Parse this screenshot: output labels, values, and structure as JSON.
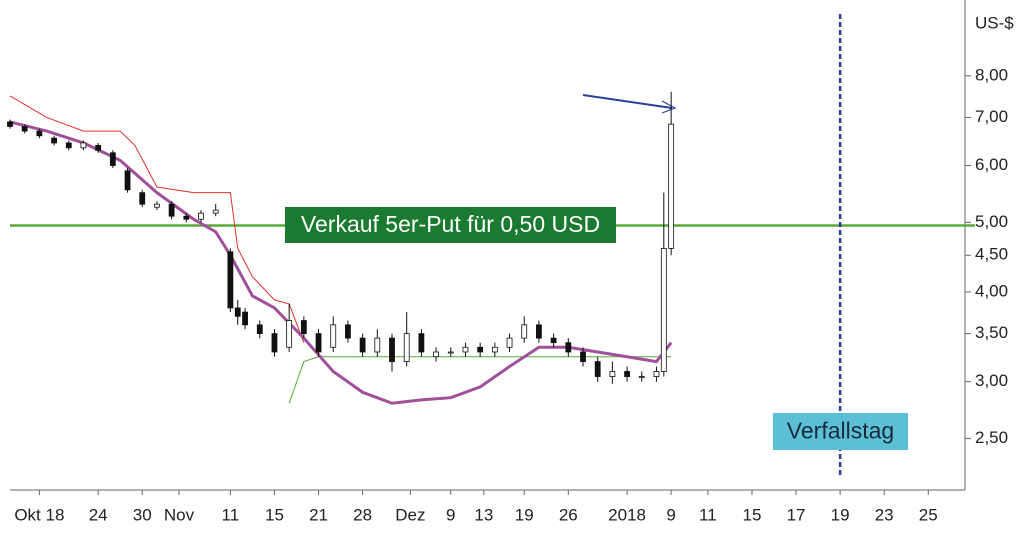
{
  "chart_data": {
    "type": "candlestick",
    "y_label": "US-$",
    "yscale": "log",
    "ylim": [
      2.12,
      10.2
    ],
    "yticks": [
      {
        "value": 2.5,
        "label": "2,50"
      },
      {
        "value": 3,
        "label": "3,00"
      },
      {
        "value": 3.5,
        "label": "3,50"
      },
      {
        "value": 4,
        "label": "4,00"
      },
      {
        "value": 4.5,
        "label": "4,50"
      },
      {
        "value": 5,
        "label": "5,00"
      },
      {
        "value": 6,
        "label": "6,00"
      },
      {
        "value": 7,
        "label": "7,00"
      },
      {
        "value": 8,
        "label": "8,00"
      }
    ],
    "xlim": [
      0,
      130
    ],
    "xticks": [
      {
        "value": 4,
        "label": "Okt 18"
      },
      {
        "value": 12,
        "label": "24"
      },
      {
        "value": 18,
        "label": "30"
      },
      {
        "value": 23,
        "label": "Nov"
      },
      {
        "value": 30,
        "label": "11"
      },
      {
        "value": 36,
        "label": "15"
      },
      {
        "value": 42,
        "label": "21"
      },
      {
        "value": 48,
        "label": "28"
      },
      {
        "value": 54.5,
        "label": "Dez"
      },
      {
        "value": 60,
        "label": "9"
      },
      {
        "value": 64.5,
        "label": "13"
      },
      {
        "value": 70,
        "label": "19"
      },
      {
        "value": 76,
        "label": "26"
      },
      {
        "value": 84,
        "label": "2018"
      },
      {
        "value": 90,
        "label": "9"
      },
      {
        "value": 95,
        "label": "11"
      },
      {
        "value": 101,
        "label": "15"
      },
      {
        "value": 107,
        "label": "17"
      },
      {
        "value": 113,
        "label": "19"
      },
      {
        "value": 119,
        "label": "23"
      },
      {
        "value": 125,
        "label": "25"
      }
    ],
    "x": [
      0,
      2,
      4,
      6,
      8,
      10,
      12,
      14,
      16,
      18,
      20,
      22,
      24,
      26,
      28,
      30,
      31,
      32,
      34,
      36,
      38,
      40,
      42,
      44,
      46,
      48,
      50,
      52,
      54,
      56,
      58,
      60,
      62,
      64,
      66,
      68,
      70,
      72,
      74,
      76,
      78,
      80,
      82,
      84,
      86,
      88,
      89,
      90
    ],
    "open": [
      6.9,
      6.8,
      6.7,
      6.55,
      6.45,
      6.35,
      6.4,
      6.25,
      5.9,
      5.5,
      5.25,
      5.3,
      5.1,
      5.05,
      5.15,
      4.55,
      3.8,
      3.75,
      3.6,
      3.5,
      3.35,
      3.65,
      3.5,
      3.35,
      3.6,
      3.45,
      3.3,
      3.45,
      3.2,
      3.5,
      3.25,
      3.3,
      3.3,
      3.35,
      3.3,
      3.35,
      3.45,
      3.6,
      3.45,
      3.4,
      3.3,
      3.2,
      3.05,
      3.1,
      3.05,
      3.05,
      3.1,
      4.6
    ],
    "high": [
      6.95,
      6.85,
      6.75,
      6.6,
      6.5,
      6.5,
      6.45,
      6.3,
      5.95,
      5.55,
      5.35,
      5.35,
      5.15,
      5.2,
      5.3,
      4.6,
      3.9,
      3.8,
      3.65,
      3.55,
      3.85,
      3.7,
      3.55,
      3.7,
      3.65,
      3.5,
      3.55,
      3.5,
      3.75,
      3.55,
      3.35,
      3.35,
      3.4,
      3.4,
      3.4,
      3.5,
      3.7,
      3.65,
      3.5,
      3.45,
      3.35,
      3.25,
      3.2,
      3.15,
      3.1,
      3.15,
      5.5,
      7.6
    ],
    "low": [
      6.75,
      6.65,
      6.55,
      6.4,
      6.3,
      6.3,
      6.25,
      5.95,
      5.5,
      5.25,
      5.2,
      5.05,
      5.0,
      5.0,
      5.1,
      3.75,
      3.6,
      3.55,
      3.45,
      3.25,
      3.3,
      3.45,
      3.25,
      3.3,
      3.4,
      3.25,
      3.25,
      3.1,
      3.15,
      3.25,
      3.2,
      3.25,
      3.25,
      3.25,
      3.25,
      3.3,
      3.4,
      3.4,
      3.35,
      3.25,
      3.15,
      3.0,
      2.98,
      3.0,
      3.0,
      3.0,
      3.05,
      4.5
    ],
    "close": [
      6.8,
      6.7,
      6.6,
      6.45,
      6.35,
      6.45,
      6.3,
      6.0,
      5.55,
      5.3,
      5.3,
      5.1,
      5.05,
      5.15,
      5.2,
      3.8,
      3.7,
      3.6,
      3.5,
      3.3,
      3.65,
      3.5,
      3.3,
      3.6,
      3.45,
      3.3,
      3.45,
      3.2,
      3.5,
      3.3,
      3.3,
      3.3,
      3.35,
      3.3,
      3.35,
      3.45,
      3.6,
      3.45,
      3.4,
      3.3,
      3.2,
      3.05,
      3.1,
      3.05,
      3.05,
      3.1,
      4.6,
      6.85
    ],
    "up_color": "#ffffff",
    "down_color": "#111111",
    "lines": [
      {
        "color": "#e03030",
        "width": 1,
        "x": [
          0,
          5,
          10,
          15,
          17,
          20,
          25,
          30,
          31,
          33,
          36,
          38,
          40
        ],
        "values": [
          7.5,
          7.0,
          6.7,
          6.7,
          6.4,
          5.6,
          5.5,
          5.5,
          4.6,
          4.2,
          3.9,
          3.85,
          3.4
        ]
      },
      {
        "color": "#5aaa3a",
        "width": 1,
        "x": [
          38,
          40,
          42,
          44,
          60,
          70,
          78,
          86,
          90
        ],
        "values": [
          2.8,
          3.2,
          3.25,
          3.25,
          3.25,
          3.25,
          3.25,
          3.25,
          3.25
        ]
      },
      {
        "color": "#a0509a",
        "width": 3,
        "x": [
          0,
          5,
          10,
          15,
          20,
          25,
          28,
          30,
          33,
          36,
          40,
          44,
          48,
          52,
          56,
          60,
          64,
          68,
          72,
          76,
          80,
          84,
          88,
          90
        ],
        "values": [
          6.9,
          6.7,
          6.45,
          6.1,
          5.5,
          5.05,
          4.85,
          4.5,
          3.95,
          3.8,
          3.45,
          3.1,
          2.9,
          2.8,
          2.83,
          2.85,
          2.95,
          3.15,
          3.35,
          3.35,
          3.3,
          3.25,
          3.2,
          3.4
        ]
      }
    ],
    "hline": {
      "value": 4.95,
      "color": "#5aaa3a"
    },
    "vline": {
      "x": 113,
      "color": "#2a3f9a"
    },
    "annotations": [
      {
        "text": "Verkauf 5er-Put für 0,50 USD",
        "color": "#1a7a2f"
      },
      {
        "text": "Verfallstag",
        "color": "#5bc0d5"
      }
    ]
  }
}
